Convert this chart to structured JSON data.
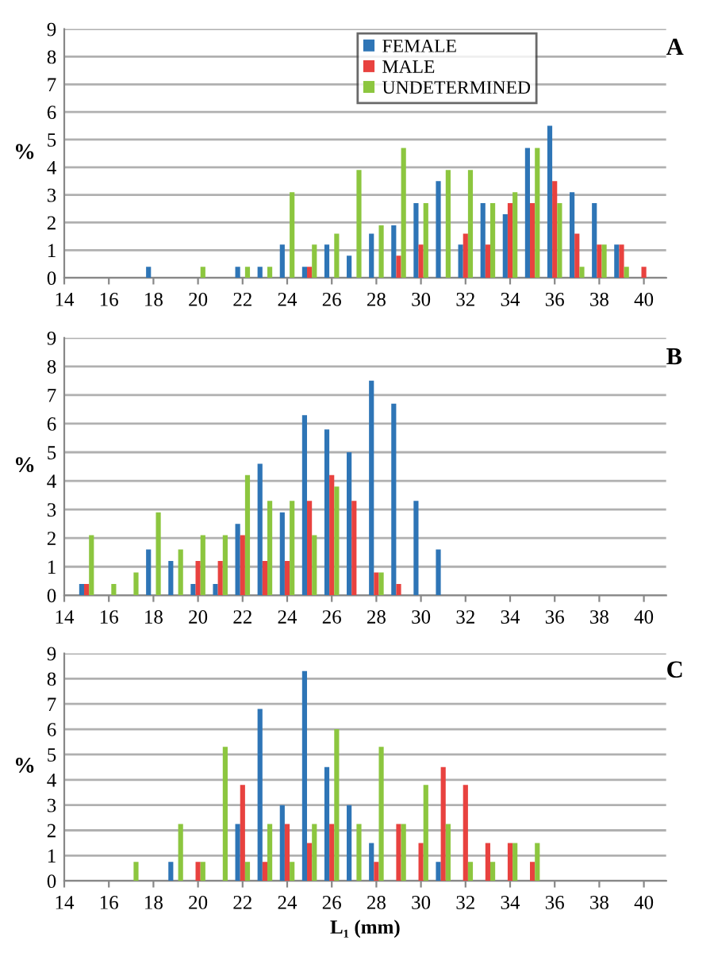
{
  "chart_data": [
    {
      "type": "bar",
      "x": [
        18,
        19,
        20,
        21,
        22,
        23,
        24,
        25,
        26,
        27,
        28,
        29,
        30,
        31,
        32,
        33,
        34,
        35,
        36,
        37,
        38,
        39,
        40
      ],
      "xlim": [
        14,
        41
      ],
      "xticks": [
        14,
        16,
        18,
        20,
        22,
        24,
        26,
        28,
        30,
        32,
        34,
        36,
        38,
        40
      ],
      "ylim": [
        0,
        9
      ],
      "yticks": [
        0,
        1,
        2,
        3,
        4,
        5,
        6,
        7,
        8,
        9
      ],
      "ylabel": "%",
      "grid": "y",
      "legend": "top right",
      "annotations": [
        "A"
      ],
      "series": [
        {
          "name": "FEMALE",
          "color": "#2e75b6",
          "values": [
            0.4,
            null,
            null,
            null,
            0.4,
            0.4,
            1.2,
            0.4,
            1.2,
            0.8,
            1.6,
            1.9,
            2.7,
            3.5,
            1.2,
            2.7,
            2.3,
            4.7,
            5.5,
            3.1,
            2.7,
            1.2,
            null
          ]
        },
        {
          "name": "MALE",
          "color": "#e8423f",
          "values": [
            null,
            null,
            null,
            null,
            null,
            null,
            null,
            0.4,
            null,
            null,
            null,
            0.8,
            1.2,
            null,
            1.6,
            1.2,
            2.7,
            2.7,
            3.5,
            1.6,
            1.2,
            1.2,
            0.4
          ]
        },
        {
          "name": "UNDETERMINED",
          "color": "#8cc63f",
          "values": [
            null,
            null,
            0.4,
            null,
            0.4,
            0.4,
            3.1,
            1.2,
            1.6,
            3.9,
            1.9,
            4.7,
            2.7,
            3.9,
            3.9,
            2.7,
            3.1,
            4.7,
            2.7,
            0.4,
            1.2,
            0.4,
            null
          ]
        }
      ]
    },
    {
      "type": "bar",
      "x": [
        15,
        16,
        17,
        18,
        19,
        20,
        21,
        22,
        23,
        24,
        25,
        26,
        27,
        28,
        29,
        30,
        31
      ],
      "xlim": [
        14,
        41
      ],
      "xticks": [
        14,
        16,
        18,
        20,
        22,
        24,
        26,
        28,
        30,
        32,
        34,
        36,
        38,
        40
      ],
      "ylim": [
        0,
        9
      ],
      "yticks": [
        0,
        1,
        2,
        3,
        4,
        5,
        6,
        7,
        8,
        9
      ],
      "ylabel": "%",
      "grid": "y",
      "annotations": [
        "B"
      ],
      "series": [
        {
          "color": "#2e75b6",
          "values": [
            0.4,
            null,
            null,
            1.6,
            1.2,
            0.4,
            0.4,
            2.5,
            4.6,
            2.9,
            6.3,
            5.8,
            5.0,
            7.5,
            6.7,
            3.3,
            1.6
          ]
        },
        {
          "color": "#e8423f",
          "values": [
            0.4,
            null,
            null,
            null,
            null,
            1.2,
            1.2,
            2.1,
            1.2,
            1.2,
            3.3,
            4.2,
            3.3,
            0.8,
            0.4,
            null,
            null
          ]
        },
        {
          "color": "#8cc63f",
          "values": [
            2.1,
            0.4,
            0.8,
            2.9,
            1.6,
            2.1,
            2.1,
            4.2,
            3.3,
            3.3,
            2.1,
            3.8,
            null,
            0.8,
            null,
            null,
            null
          ]
        }
      ]
    },
    {
      "type": "bar",
      "x": [
        17,
        18,
        19,
        20,
        21,
        22,
        23,
        24,
        25,
        26,
        27,
        28,
        29,
        30,
        31,
        32,
        33,
        34,
        35
      ],
      "xlim": [
        14,
        41
      ],
      "xticks": [
        14,
        16,
        18,
        20,
        22,
        24,
        26,
        28,
        30,
        32,
        34,
        36,
        38,
        40
      ],
      "ylim": [
        0,
        9
      ],
      "yticks": [
        0,
        1,
        2,
        3,
        4,
        5,
        6,
        7,
        8,
        9
      ],
      "ylabel": "%",
      "xlabel": "L₁ (mm)",
      "grid": "y",
      "annotations": [
        "C"
      ],
      "series": [
        {
          "color": "#2e75b6",
          "values": [
            null,
            null,
            0.75,
            null,
            null,
            2.25,
            6.8,
            3.0,
            8.3,
            4.5,
            3.0,
            1.5,
            null,
            null,
            0.75,
            null,
            null,
            null,
            null
          ]
        },
        {
          "color": "#e8423f",
          "values": [
            null,
            null,
            null,
            0.75,
            null,
            3.8,
            0.75,
            2.25,
            1.5,
            2.25,
            null,
            0.75,
            2.25,
            1.5,
            4.5,
            3.8,
            1.5,
            1.5,
            0.75
          ]
        },
        {
          "color": "#8cc63f",
          "values": [
            0.75,
            null,
            2.25,
            0.75,
            5.3,
            0.75,
            2.25,
            0.75,
            2.25,
            6.0,
            2.25,
            5.3,
            2.25,
            3.8,
            2.25,
            0.75,
            0.75,
            1.5,
            1.5
          ]
        }
      ]
    }
  ]
}
